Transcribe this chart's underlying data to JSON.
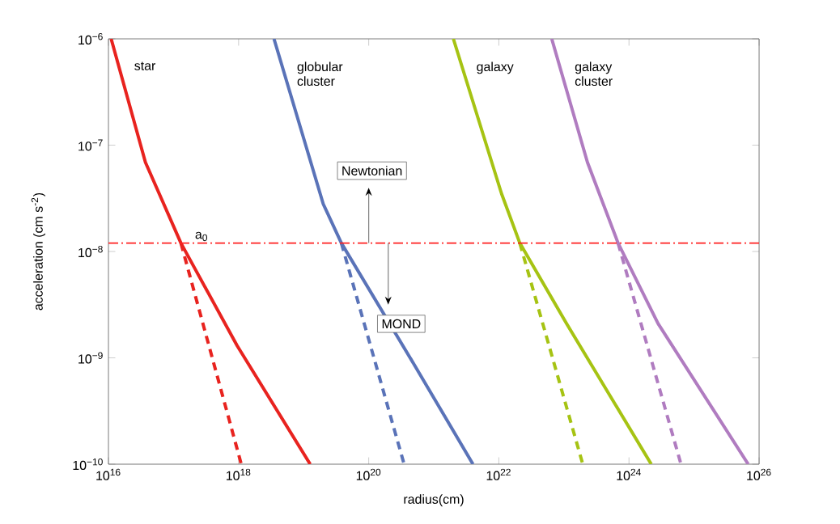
{
  "chart_data": {
    "type": "line",
    "xlabel": "radius(cm)",
    "ylabel": "acceleration (cm s$^{-2}$)",
    "log": "xy",
    "grid": false,
    "marker": "none",
    "xlim": [
      1e+16,
      1e+26
    ],
    "ylim": [
      1e-10,
      1e-06
    ],
    "xticks": [
      {
        "value": 1e+16,
        "label": "10$^{16}$"
      },
      {
        "value": 1e+18,
        "label": "10$^{18}$"
      },
      {
        "value": 1e+20,
        "label": "10$^{20}$"
      },
      {
        "value": 1e+22,
        "label": "10$^{22}$"
      },
      {
        "value": 1e+24,
        "label": "10$^{24}$"
      },
      {
        "value": 1e+26,
        "label": "10$^{26}$"
      }
    ],
    "yticks": [
      {
        "value": 1e-10,
        "label": "10$^{−10}$"
      },
      {
        "value": 1e-09,
        "label": "10$^{−9}$"
      },
      {
        "value": 1e-08,
        "label": "10$^{−8}$"
      },
      {
        "value": 1e-07,
        "label": "10$^{−7}$"
      },
      {
        "value": 1e-06,
        "label": "10$^{−6}$"
      }
    ],
    "series": [
      {
        "name": "star",
        "color": "#e8231f",
        "line_style": "solid",
        "x": [
          1.1e+16,
          3.7e+16,
          1.3e+17,
          9.5e+17,
          1.26e+19
        ],
        "values": [
          1e-06,
          6.9e-08,
          1.2e-08,
          1.3e-09,
          1e-10
        ]
      },
      {
        "color": "#e8231f",
        "line_style": "dashed",
        "x": [
          1.3e+17,
          1.1e+18
        ],
        "values": [
          1.2e-08,
          1e-10
        ]
      },
      {
        "name": "globular cluster",
        "color": "#5a73b8",
        "line_style": "solid",
        "x": [
          3.5e+18,
          2e+19,
          3.8e+19,
          5.2e+20,
          4e+21
        ],
        "values": [
          1e-06,
          2.8e-08,
          1.2e-08,
          8.3e-10,
          1e-10
        ]
      },
      {
        "color": "#5a73b8",
        "line_style": "dashed",
        "x": [
          3.8e+19,
          3.5e+20
        ],
        "values": [
          1.2e-08,
          1e-10
        ]
      },
      {
        "name": "galaxy",
        "color": "#a6c313",
        "line_style": "solid",
        "x": [
          2e+21,
          1.1e+22,
          2.1e+22,
          1.1e+23,
          2.2e+24
        ],
        "values": [
          1e-06,
          3.5e-08,
          1.2e-08,
          2.1e-09,
          1e-10
        ]
      },
      {
        "color": "#a6c313",
        "line_style": "dashed",
        "x": [
          2.1e+22,
          1.95e+23
        ],
        "values": [
          1.2e-08,
          1e-10
        ]
      },
      {
        "name": "galaxy cluster",
        "color": "#b07cc0",
        "line_style": "solid",
        "x": [
          6.5e+22,
          2.3e+23,
          6.8e+23,
          2.8e+24,
          6.8e+25
        ],
        "values": [
          1e-06,
          6.9e-08,
          1.2e-08,
          2.1e-09,
          1e-10
        ]
      },
      {
        "color": "#b07cc0",
        "line_style": "dashed",
        "x": [
          6.8e+23,
          6.3e+24
        ],
        "values": [
          1.2e-08,
          1e-10
        ]
      }
    ],
    "ref_lines": [
      {
        "axis": "y",
        "value": 1.2e-08,
        "label": "a$_{0}$",
        "color": "#ff2020",
        "line_style": "dashed"
      }
    ],
    "annotations": [
      "Newtonian",
      "MOND"
    ]
  }
}
